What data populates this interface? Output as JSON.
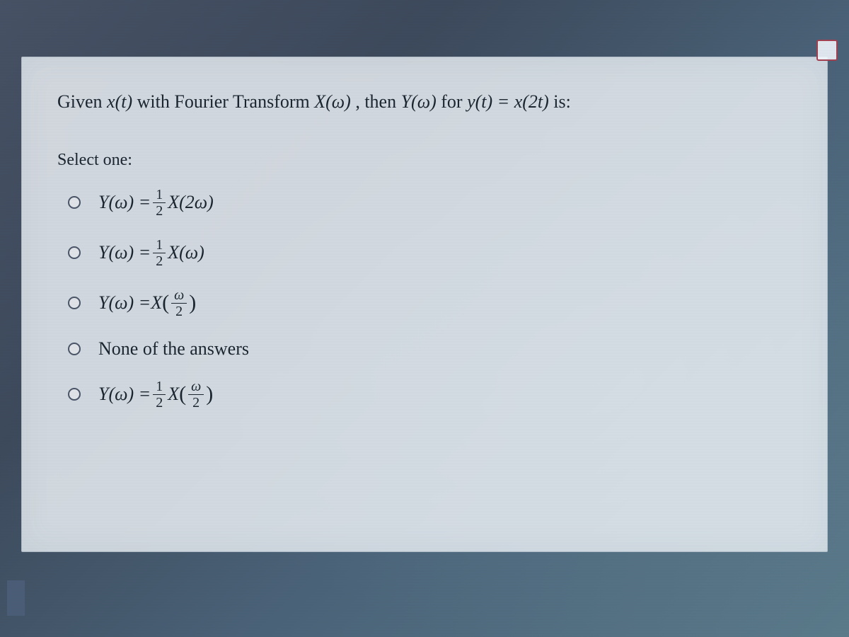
{
  "question": {
    "intro": "Given ",
    "func1": "x(t)",
    "mid1": " with Fourier Transform ",
    "func2": "X(ω)",
    "mid2": ", then ",
    "func3": "Y(ω)",
    "mid3": " for ",
    "func4": "y(t) = x(2t)",
    "end": " is:"
  },
  "select_label": "Select one:",
  "options": [
    {
      "lhs": "Y(ω) = ",
      "has_fraction_coef": true,
      "frac_num": "1",
      "frac_den": "2",
      "func": "X",
      "arg_has_fraction": false,
      "arg_plain": "(2ω)"
    },
    {
      "lhs": "Y(ω) = ",
      "has_fraction_coef": true,
      "frac_num": "1",
      "frac_den": "2",
      "func": "X",
      "arg_has_fraction": false,
      "arg_plain": "(ω)"
    },
    {
      "lhs": "Y(ω) = ",
      "has_fraction_coef": false,
      "func": "X",
      "arg_has_fraction": true,
      "arg_open": "(",
      "arg_frac_num": "ω",
      "arg_frac_den": "2",
      "arg_close": ")"
    },
    {
      "lhs": "",
      "text_only": true,
      "text": "None of the answers"
    },
    {
      "lhs": "Y(ω) = ",
      "has_fraction_coef": true,
      "frac_num": "1",
      "frac_den": "2",
      "func": "X",
      "arg_has_fraction": true,
      "arg_open": "(",
      "arg_frac_num": "ω",
      "arg_frac_den": "2",
      "arg_close": ")"
    }
  ],
  "colors": {
    "text": "#1a2530",
    "bg_gradient_start": "#4a5568",
    "bg_gradient_end": "#5a7a8a",
    "panel_bg": "rgba(235,240,245,0.85)",
    "radio_border": "#4a5568",
    "flag_border": "#a04050"
  },
  "typography": {
    "question_fontsize": 26,
    "option_fontsize": 26,
    "label_fontsize": 24,
    "fraction_fontsize": 20,
    "font_family": "Georgia, Times New Roman, serif"
  }
}
